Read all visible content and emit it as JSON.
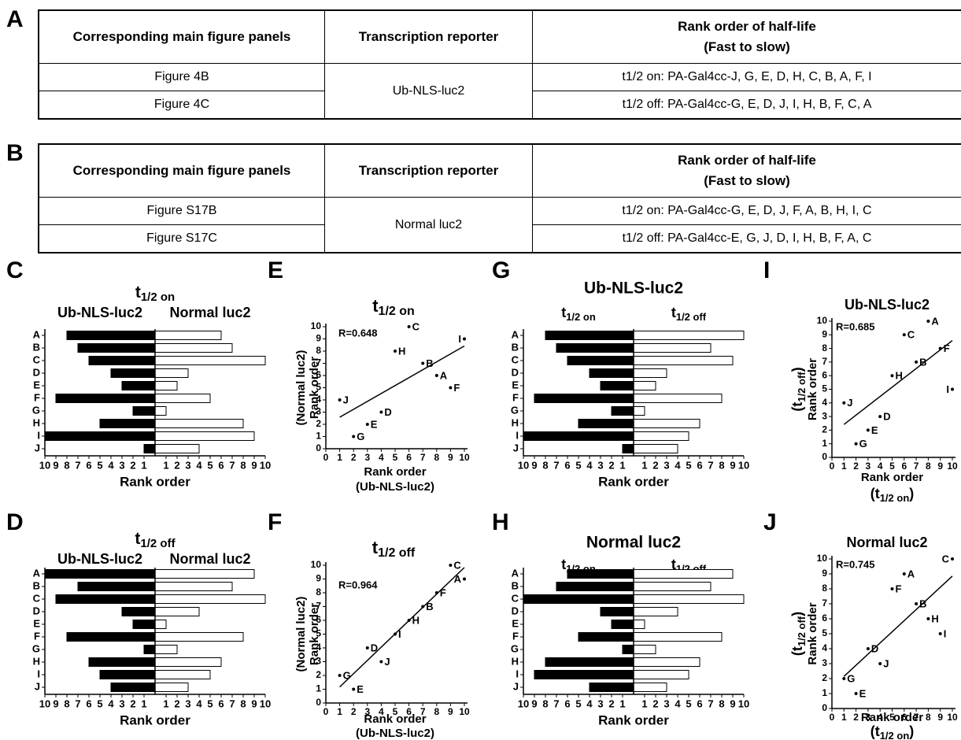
{
  "tables": [
    {
      "label": "A",
      "headers": [
        "Corresponding main figure panels",
        "Transcription reporter",
        [
          "Rank order of half-life",
          "(Fast to slow)"
        ]
      ],
      "panels": [
        "Figure 4B",
        "Figure 4C"
      ],
      "reporter": "Ub-NLS-luc2",
      "rank_orders": [
        "t1/2 on: PA-Gal4cc-J, G, E, D, H, C, B, A, F, I",
        "t1/2 off: PA-Gal4cc-G, E, D, J, I, H, B, F, C, A"
      ]
    },
    {
      "label": "B",
      "headers": [
        "Corresponding main figure panels",
        "Transcription reporter",
        [
          "Rank order of half-life",
          "(Fast to slow)"
        ]
      ],
      "panels": [
        "Figure S17B",
        "Figure S17C"
      ],
      "reporter": "Normal luc2",
      "rank_orders": [
        "t1/2 on: PA-Gal4cc-G, E, D, J, F, A, B, H, I, C",
        "t1/2 off: PA-Gal4cc-E, G, J, D, I, H, B, F, A, C"
      ]
    }
  ],
  "chart_data": [
    {
      "type": "butterfly",
      "label": "C",
      "title": {
        "text": "t",
        "sub": "1/2 on"
      },
      "categories": [
        "A",
        "B",
        "C",
        "D",
        "E",
        "F",
        "G",
        "H",
        "I",
        "J"
      ],
      "series": [
        {
          "name": "Ub-NLS-luc2",
          "color": "#000000",
          "values": [
            8,
            7,
            6,
            4,
            3,
            9,
            2,
            5,
            10,
            1
          ]
        },
        {
          "name": "Normal luc2",
          "color": "#ffffff",
          "values": [
            6,
            7,
            10,
            3,
            2,
            5,
            1,
            8,
            9,
            4
          ]
        }
      ],
      "xlim": [
        0,
        10
      ],
      "xticks": [
        1,
        2,
        3,
        4,
        5,
        6,
        7,
        8,
        9,
        10
      ],
      "xlabel": "Rank order"
    },
    {
      "type": "butterfly",
      "label": "D",
      "title": {
        "text": "t",
        "sub": "1/2 off"
      },
      "categories": [
        "A",
        "B",
        "C",
        "D",
        "E",
        "F",
        "G",
        "H",
        "I",
        "J"
      ],
      "series": [
        {
          "name": "Ub-NLS-luc2",
          "color": "#000000",
          "values": [
            10,
            7,
            9,
            3,
            2,
            8,
            1,
            6,
            5,
            4
          ]
        },
        {
          "name": "Normal luc2",
          "color": "#ffffff",
          "values": [
            9,
            7,
            10,
            4,
            1,
            8,
            2,
            6,
            5,
            3
          ]
        }
      ],
      "xlim": [
        0,
        10
      ],
      "xticks": [
        1,
        2,
        3,
        4,
        5,
        6,
        7,
        8,
        9,
        10
      ],
      "xlabel": "Rank order"
    },
    {
      "type": "scatter",
      "label": "E",
      "title": {
        "text": "t",
        "sub": "1/2 on"
      },
      "annotation": "R=0.648",
      "point_labels": [
        "A",
        "B",
        "C",
        "D",
        "E",
        "F",
        "G",
        "H",
        "I",
        "J"
      ],
      "color": "#000000",
      "x": [
        8,
        7,
        6,
        4,
        3,
        9,
        2,
        5,
        10,
        1
      ],
      "values": [
        6,
        7,
        10,
        3,
        2,
        5,
        1,
        8,
        9,
        4
      ],
      "xlim": [
        0,
        10
      ],
      "ylim": [
        0,
        10
      ],
      "xticks": [
        0,
        1,
        2,
        3,
        4,
        5,
        6,
        7,
        8,
        9,
        10
      ],
      "yticks": [
        0,
        1,
        2,
        3,
        4,
        5,
        6,
        7,
        8,
        9,
        10
      ],
      "xlabel": [
        "Rank order",
        "(Ub-NLS-luc2)"
      ],
      "ylabel": [
        "(Normal luc2)",
        "Rank order"
      ],
      "trendline": true
    },
    {
      "type": "scatter",
      "label": "F",
      "title": {
        "text": "t",
        "sub": "1/2 off"
      },
      "annotation": "R=0.964",
      "point_labels": [
        "A",
        "B",
        "C",
        "D",
        "E",
        "F",
        "G",
        "H",
        "I",
        "J"
      ],
      "color": "#000000",
      "x": [
        10,
        7,
        9,
        3,
        2,
        8,
        1,
        6,
        5,
        4
      ],
      "values": [
        9,
        7,
        10,
        4,
        1,
        8,
        2,
        6,
        5,
        3
      ],
      "xlim": [
        0,
        10
      ],
      "ylim": [
        0,
        10
      ],
      "xticks": [
        0,
        1,
        2,
        3,
        4,
        5,
        6,
        7,
        8,
        9,
        10
      ],
      "yticks": [
        0,
        1,
        2,
        3,
        4,
        5,
        6,
        7,
        8,
        9,
        10
      ],
      "xlabel": [
        "Rank order",
        "(Ub-NLS-luc2)"
      ],
      "ylabel": [
        "(Normal luc2)",
        "Rank order"
      ],
      "trendline": true
    },
    {
      "type": "butterfly",
      "label": "G",
      "title": "Ub-NLS-luc2",
      "categories": [
        "A",
        "B",
        "C",
        "D",
        "E",
        "F",
        "G",
        "H",
        "I",
        "J"
      ],
      "series": [
        {
          "name": {
            "text": "t",
            "sub": "1/2 on"
          },
          "color": "#000000",
          "values": [
            8,
            7,
            6,
            4,
            3,
            9,
            2,
            5,
            10,
            1
          ]
        },
        {
          "name": {
            "text": "t",
            "sub": "1/2 off"
          },
          "color": "#ffffff",
          "values": [
            10,
            7,
            9,
            3,
            2,
            8,
            1,
            6,
            5,
            4
          ]
        }
      ],
      "xlim": [
        0,
        10
      ],
      "xticks": [
        1,
        2,
        3,
        4,
        5,
        6,
        7,
        8,
        9,
        10
      ],
      "xlabel": "Rank order"
    },
    {
      "type": "butterfly",
      "label": "H",
      "title": "Normal luc2",
      "categories": [
        "A",
        "B",
        "C",
        "D",
        "E",
        "F",
        "G",
        "H",
        "I",
        "J"
      ],
      "series": [
        {
          "name": {
            "text": "t",
            "sub": "1/2 on"
          },
          "color": "#000000",
          "values": [
            6,
            7,
            10,
            3,
            2,
            5,
            1,
            8,
            9,
            4
          ]
        },
        {
          "name": {
            "text": "t",
            "sub": "1/2 off"
          },
          "color": "#ffffff",
          "values": [
            9,
            7,
            10,
            4,
            1,
            8,
            2,
            6,
            5,
            3
          ]
        }
      ],
      "xlim": [
        0,
        10
      ],
      "xticks": [
        1,
        2,
        3,
        4,
        5,
        6,
        7,
        8,
        9,
        10
      ],
      "xlabel": "Rank order"
    },
    {
      "type": "scatter",
      "label": "I",
      "title": "Ub-NLS-luc2",
      "annotation": "R=0.685",
      "point_labels": [
        "A",
        "B",
        "C",
        "D",
        "E",
        "F",
        "G",
        "H",
        "I",
        "J"
      ],
      "color": "#000000",
      "x": [
        8,
        7,
        6,
        4,
        3,
        9,
        2,
        5,
        10,
        1
      ],
      "values": [
        10,
        7,
        9,
        3,
        2,
        8,
        1,
        6,
        5,
        4
      ],
      "xlim": [
        0,
        10
      ],
      "ylim": [
        0,
        10
      ],
      "xticks": [
        0,
        1,
        2,
        3,
        4,
        5,
        6,
        7,
        8,
        9,
        10
      ],
      "yticks": [
        0,
        1,
        2,
        3,
        4,
        5,
        6,
        7,
        8,
        9,
        10
      ],
      "xlabel": [
        "Rank order",
        {
          "text": "(t",
          "sub": "1/2 on",
          "post": ")"
        }
      ],
      "ylabel": [
        {
          "text": "(t",
          "sub": "1/2 off",
          "post": ")"
        },
        "Rank order"
      ],
      "trendline": true
    },
    {
      "type": "scatter",
      "label": "J",
      "title": "Normal luc2",
      "annotation": "R=0.745",
      "point_labels": [
        "A",
        "B",
        "C",
        "D",
        "E",
        "F",
        "G",
        "H",
        "I",
        "J"
      ],
      "color": "#000000",
      "x": [
        6,
        7,
        10,
        3,
        2,
        5,
        1,
        8,
        9,
        4
      ],
      "values": [
        9,
        7,
        10,
        4,
        1,
        8,
        2,
        6,
        5,
        3
      ],
      "xlim": [
        0,
        10
      ],
      "ylim": [
        0,
        10
      ],
      "xticks": [
        0,
        1,
        2,
        3,
        4,
        5,
        6,
        7,
        8,
        9,
        10
      ],
      "yticks": [
        0,
        1,
        2,
        3,
        4,
        5,
        6,
        7,
        8,
        9,
        10
      ],
      "xlabel": [
        "Rank order",
        {
          "text": "(t",
          "sub": "1/2 on",
          "post": ")"
        }
      ],
      "ylabel": [
        {
          "text": "(t",
          "sub": "1/2 off",
          "post": ")"
        },
        "Rank order"
      ],
      "trendline": true
    }
  ]
}
